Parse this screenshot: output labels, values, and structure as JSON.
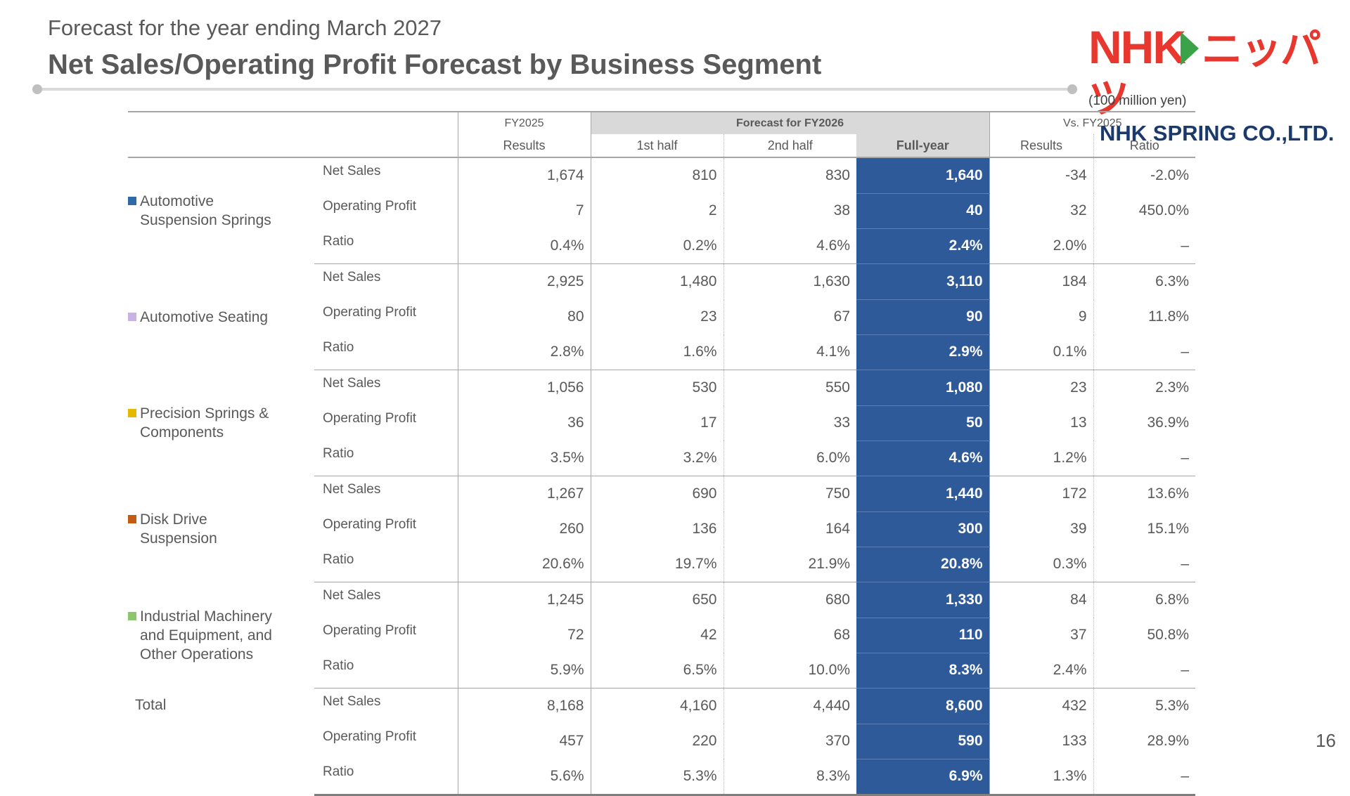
{
  "header": {
    "subtitle": "Forecast for the year ending March 2027",
    "title": "Net Sales/Operating Profit Forecast by Business Segment"
  },
  "logo": {
    "top_text": "NHK",
    "top_kana": "ニッパツ",
    "bottom_text": "NHK SPRING CO.,LTD.",
    "colors": {
      "red": "#e8372e",
      "green": "#3aa34a",
      "navy": "#1a3a6e"
    }
  },
  "unit_note": "(100 million yen)",
  "table": {
    "headers": {
      "fy2025": "FY2025",
      "fy2025_sub": "Results",
      "forecast": "Forecast for FY2026",
      "first_half": "1st half",
      "second_half": "2nd half",
      "full_year": "Full-year",
      "vs": "Vs. FY2025",
      "vs_results": "Results",
      "vs_ratio": "Ratio"
    },
    "highlight_color": "#2e5a9a",
    "segments": [
      {
        "name_line1": "Automotive",
        "name_line2": "Suspension Springs",
        "color": "#2e6aa8",
        "rows": [
          {
            "metric": "Net Sales",
            "fy2025": "1,674",
            "h1": "810",
            "h2": "830",
            "full": "1,640",
            "vs_results": "-34",
            "vs_ratio": "-2.0%"
          },
          {
            "metric": "Operating Profit",
            "fy2025": "7",
            "h1": "2",
            "h2": "38",
            "full": "40",
            "vs_results": "32",
            "vs_ratio": "450.0%"
          },
          {
            "metric": "Ratio",
            "fy2025": "0.4%",
            "h1": "0.2%",
            "h2": "4.6%",
            "full": "2.4%",
            "vs_results": "2.0%",
            "vs_ratio": "–"
          }
        ]
      },
      {
        "name_line1": "Automotive Seating",
        "name_line2": "",
        "color": "#c9b2e6",
        "rows": [
          {
            "metric": "Net Sales",
            "fy2025": "2,925",
            "h1": "1,480",
            "h2": "1,630",
            "full": "3,110",
            "vs_results": "184",
            "vs_ratio": "6.3%"
          },
          {
            "metric": "Operating Profit",
            "fy2025": "80",
            "h1": "23",
            "h2": "67",
            "full": "90",
            "vs_results": "9",
            "vs_ratio": "11.8%"
          },
          {
            "metric": "Ratio",
            "fy2025": "2.8%",
            "h1": "1.6%",
            "h2": "4.1%",
            "full": "2.9%",
            "vs_results": "0.1%",
            "vs_ratio": "–"
          }
        ]
      },
      {
        "name_line1": "Precision Springs &",
        "name_line2": "Components",
        "color": "#e6b800",
        "rows": [
          {
            "metric": "Net Sales",
            "fy2025": "1,056",
            "h1": "530",
            "h2": "550",
            "full": "1,080",
            "vs_results": "23",
            "vs_ratio": "2.3%"
          },
          {
            "metric": "Operating Profit",
            "fy2025": "36",
            "h1": "17",
            "h2": "33",
            "full": "50",
            "vs_results": "13",
            "vs_ratio": "36.9%"
          },
          {
            "metric": "Ratio",
            "fy2025": "3.5%",
            "h1": "3.2%",
            "h2": "6.0%",
            "full": "4.6%",
            "vs_results": "1.2%",
            "vs_ratio": "–"
          }
        ]
      },
      {
        "name_line1": "Disk Drive",
        "name_line2": "Suspension",
        "color": "#c55a11",
        "rows": [
          {
            "metric": "Net Sales",
            "fy2025": "1,267",
            "h1": "690",
            "h2": "750",
            "full": "1,440",
            "vs_results": "172",
            "vs_ratio": "13.6%"
          },
          {
            "metric": "Operating Profit",
            "fy2025": "260",
            "h1": "136",
            "h2": "164",
            "full": "300",
            "vs_results": "39",
            "vs_ratio": "15.1%"
          },
          {
            "metric": "Ratio",
            "fy2025": "20.6%",
            "h1": "19.7%",
            "h2": "21.9%",
            "full": "20.8%",
            "vs_results": "0.3%",
            "vs_ratio": "–"
          }
        ]
      },
      {
        "name_line1": "Industrial Machinery",
        "name_line2": "and Equipment, and",
        "name_line3": "Other Operations",
        "color": "#8cc66d",
        "rows": [
          {
            "metric": "Net Sales",
            "fy2025": "1,245",
            "h1": "650",
            "h2": "680",
            "full": "1,330",
            "vs_results": "84",
            "vs_ratio": "6.8%"
          },
          {
            "metric": "Operating Profit",
            "fy2025": "72",
            "h1": "42",
            "h2": "68",
            "full": "110",
            "vs_results": "37",
            "vs_ratio": "50.8%"
          },
          {
            "metric": "Ratio",
            "fy2025": "5.9%",
            "h1": "6.5%",
            "h2": "10.0%",
            "full": "8.3%",
            "vs_results": "2.4%",
            "vs_ratio": "–"
          }
        ]
      },
      {
        "name_line1": "Total",
        "name_line2": "",
        "color": "",
        "rows": [
          {
            "metric": "Net Sales",
            "fy2025": "8,168",
            "h1": "4,160",
            "h2": "4,440",
            "full": "8,600",
            "vs_results": "432",
            "vs_ratio": "5.3%"
          },
          {
            "metric": "Operating Profit",
            "fy2025": "457",
            "h1": "220",
            "h2": "370",
            "full": "590",
            "vs_results": "133",
            "vs_ratio": "28.9%"
          },
          {
            "metric": "Ratio",
            "fy2025": "5.6%",
            "h1": "5.3%",
            "h2": "8.3%",
            "full": "6.9%",
            "vs_results": "1.3%",
            "vs_ratio": "–"
          }
        ]
      }
    ]
  },
  "page_number": "16"
}
